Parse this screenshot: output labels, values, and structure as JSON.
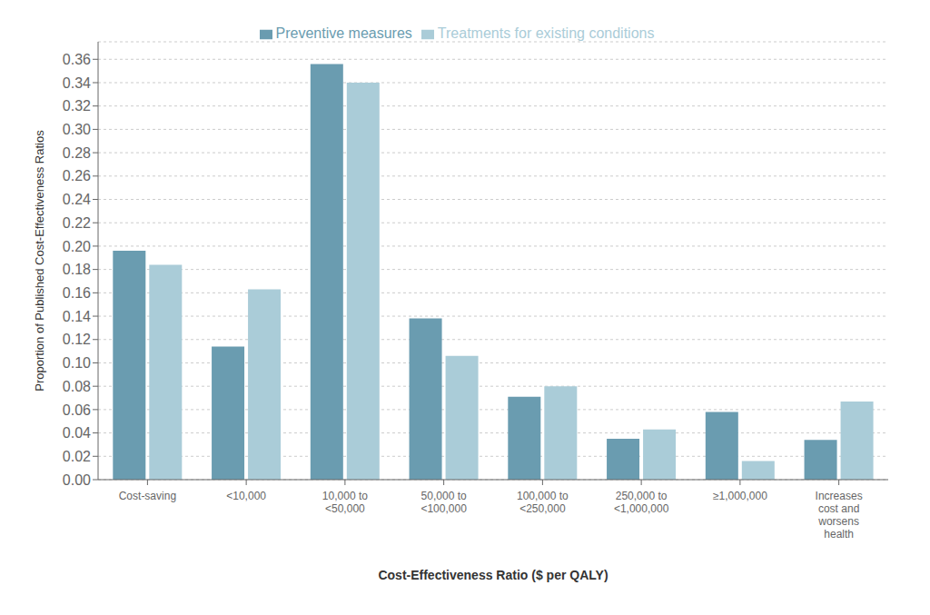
{
  "chart_data": {
    "type": "bar",
    "xlabel": "Cost-Effectiveness Ratio ($ per QALY)",
    "ylabel": "Proportion of Published Cost-Effectiveness Ratios",
    "categories": [
      "Cost-saving",
      "<10,000",
      "10,000 to\n<50,000",
      "50,000 to\n<100,000",
      "100,000 to\n<250,000",
      "250,000 to\n<1,000,000",
      "≥1,000,000",
      "Increases\ncost and\nworsens\nhealth"
    ],
    "series": [
      {
        "name": "Preventive measures",
        "color": "#6a9cb0",
        "values": [
          0.196,
          0.114,
          0.356,
          0.138,
          0.071,
          0.035,
          0.058,
          0.034
        ]
      },
      {
        "name": "Treatments for existing conditions",
        "color": "#aaccd8",
        "values": [
          0.184,
          0.163,
          0.34,
          0.106,
          0.08,
          0.043,
          0.016,
          0.067
        ]
      }
    ],
    "ylim": [
      0,
      0.375
    ],
    "yticks": [
      {
        "value": 0,
        "label": "0.00"
      },
      0.02,
      0.04,
      0.06,
      0.08,
      {
        "value": 0.1,
        "label": "0.10"
      },
      0.12,
      0.14,
      0.16,
      0.18,
      {
        "value": 0.2,
        "label": "0.20"
      },
      0.22,
      0.24,
      0.26,
      0.28,
      {
        "value": 0.3,
        "label": "0.30"
      },
      0.32,
      0.34,
      0.36
    ],
    "grid": true,
    "legend": "top"
  }
}
